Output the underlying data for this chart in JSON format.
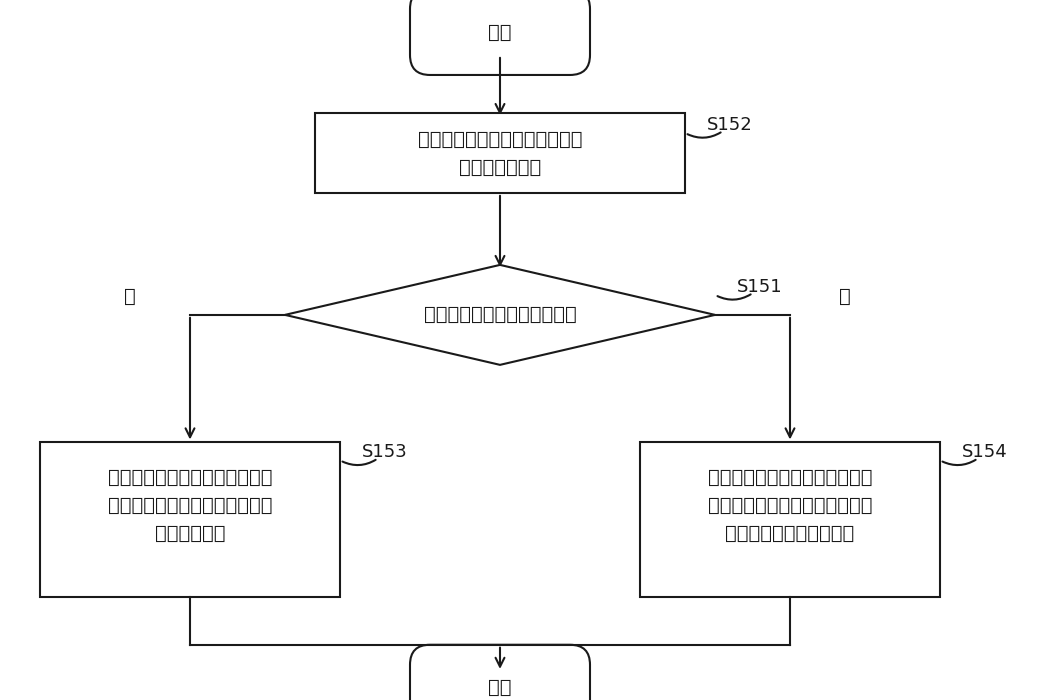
{
  "bg_color": "#ffffff",
  "line_color": "#1a1a1a",
  "text_color": "#1a1a1a",
  "font_size": 14,
  "step_font_size": 13,
  "start_label": "开始",
  "end_label": "结束",
  "box1_line1": "在洗碗机洗涤结束后控制湿度检",
  "box1_line2": "测单元检测湿度",
  "box1_step": "S152",
  "diamond_label": "判断投入装置是否投入亮碟剂",
  "diamond_step": "S151",
  "box2_line1": "根据湿度控制风机在洗碗机洗涤",
  "box2_line2": "结束后停止第一预定时间后运行",
  "box2_line3": "第二预定时间",
  "box2_step": "S153",
  "box3_line1": "根据湿度控制风机和加热装置在",
  "box3_line2": "洗碗机洗涤结束后停止第三预定",
  "box3_line3": "时间后运行第四预定时间",
  "box3_step": "S154",
  "yes_label": "是",
  "no_label": "否"
}
